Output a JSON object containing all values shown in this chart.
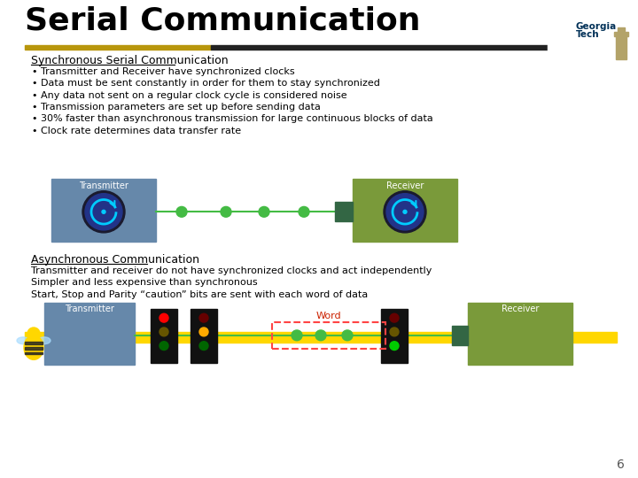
{
  "title": "Serial Communication",
  "title_fontsize": 26,
  "title_bold": true,
  "title_color": "#000000",
  "background_color": "#FFFFFF",
  "section1_title": "Synchronous Serial Communication",
  "section1_bullets": [
    "Transmitter and Receiver have synchronized clocks",
    "Data must be sent constantly in order for them to stay synchronized",
    "Any data not sent on a regular clock cycle is considered noise",
    "Transmission parameters are set up before sending data",
    "30% faster than asynchronous transmission for large continuous blocks of data",
    "Clock rate determines data transfer rate"
  ],
  "section2_title": "Asynchronous Communication",
  "section2_lines": [
    "Transmitter and receiver do not have synchronized clocks and act independently",
    "Simpler and less expensive than synchronous",
    "Start, Stop and Parity “caution” bits are sent with each word of data"
  ],
  "transmitter_box_color": "#6688AA",
  "receiver_box_color": "#7A9A3A",
  "dot_color": "#44BB44",
  "mid_box_color": "#336644",
  "yellow_bar_color": "#FFD700",
  "word_label": "Word",
  "dashed_box_color": "#FF4444",
  "page_number": "6",
  "font_family": "DejaVu Sans"
}
